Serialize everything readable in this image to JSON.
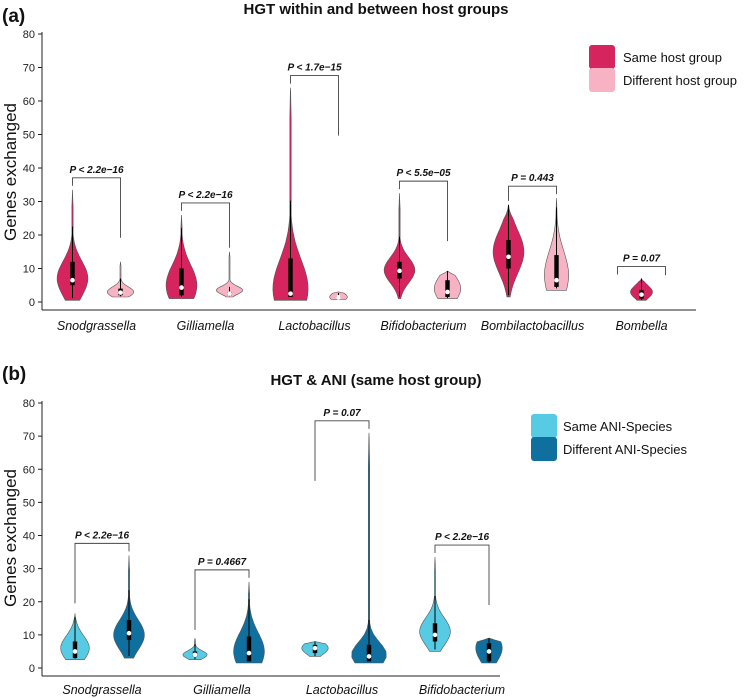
{
  "chart_data": [
    {
      "type": "violin",
      "panel_label": "(a)",
      "title": "HGT within and between host groups",
      "ylabel": "Genes exchanged",
      "xlabel": "",
      "ylim": [
        0,
        80
      ],
      "yticks": [
        0,
        10,
        20,
        30,
        40,
        50,
        60,
        70,
        80
      ],
      "legend_position": "top-right",
      "series_names": [
        "Same host group",
        "Different host group"
      ],
      "colors": [
        "#d6245e",
        "#f7b3c3"
      ],
      "categories": [
        {
          "name": "Snodgrassella",
          "pvalue": "P < 2.2e−16",
          "groups": [
            {
              "series": "Same host group",
              "min": 0.5,
              "max": 33.5,
              "q1": 5,
              "median": 6.5,
              "q3": 12,
              "mode": 7,
              "width": 0.7
            },
            {
              "series": "Different host group",
              "min": 1.5,
              "max": 12,
              "q1": 2,
              "median": 2.8,
              "q3": 4,
              "mode": 3,
              "width": 0.6
            }
          ]
        },
        {
          "name": "Gilliamella",
          "pvalue": "P < 2.2e−16",
          "groups": [
            {
              "series": "Same host group",
              "min": 1,
              "max": 26,
              "q1": 2,
              "median": 4.3,
              "q3": 10,
              "mode": 5,
              "width": 0.7
            },
            {
              "series": "Different host group",
              "min": 1.5,
              "max": 15,
              "q1": 2,
              "median": 2.5,
              "q3": 3,
              "mode": 3.5,
              "width": 0.6
            }
          ]
        },
        {
          "name": "Lactobacillus",
          "pvalue": "P < 1.7e−15",
          "groups": [
            {
              "series": "Same host group",
              "min": 0.5,
              "max": 64,
              "q1": 1.5,
              "median": 2.5,
              "q3": 13,
              "mode": 4,
              "width": 0.8
            },
            {
              "series": "Different host group",
              "min": 0.8,
              "max": 3,
              "q1": 1.2,
              "median": 1.4,
              "q3": 1.8,
              "mode": 1.5,
              "width": 0.4
            }
          ]
        },
        {
          "name": "Bifidobacterium",
          "pvalue": "P < 5.5e−05",
          "groups": [
            {
              "series": "Same host group",
              "min": 1,
              "max": 32.5,
              "q1": 7,
              "median": 9.3,
              "q3": 12,
              "mode": 9.5,
              "width": 0.7
            },
            {
              "series": "Different host group",
              "min": 1,
              "max": 9.2,
              "q1": 1.5,
              "median": 3,
              "q3": 6.5,
              "mode": 4,
              "width": 0.6
            }
          ]
        },
        {
          "name": "Bombilactobacillus",
          "pvalue": "P = 0.443",
          "groups": [
            {
              "series": "Same host group",
              "min": 1.5,
              "max": 29,
              "q1": 10,
              "median": 13.5,
              "q3": 18.5,
              "mode": 15,
              "width": 0.7
            },
            {
              "series": "Different host group",
              "min": 3.5,
              "max": 31,
              "q1": 4.5,
              "median": 6.5,
              "q3": 14,
              "mode": 8,
              "width": 0.55
            }
          ]
        },
        {
          "name": "Bombella",
          "pvalue": "P = 0.07",
          "groups": [
            {
              "series": "Same host group",
              "min": 0.5,
              "max": 7,
              "q1": 1,
              "median": 2.2,
              "q3": 3.5,
              "mode": 3,
              "width": 0.5
            }
          ]
        }
      ]
    },
    {
      "type": "violin",
      "panel_label": "(b)",
      "title": "HGT & ANI (same host group)",
      "ylabel": "Genes exchanged",
      "xlabel": "",
      "ylim": [
        0,
        80
      ],
      "yticks": [
        0,
        10,
        20,
        30,
        40,
        50,
        60,
        70,
        80
      ],
      "legend_position": "top-right",
      "series_names": [
        "Same ANI-Species",
        "Different ANI-Species"
      ],
      "colors": [
        "#57cbe4",
        "#0f6f9f"
      ],
      "categories": [
        {
          "name": "Snodgrassella",
          "pvalue": "P < 2.2e−16",
          "groups": [
            {
              "series": "Same ANI-Species",
              "min": 2.5,
              "max": 16.5,
              "q1": 3,
              "median": 5,
              "q3": 8,
              "mode": 6,
              "width": 0.65
            },
            {
              "series": "Different ANI-Species",
              "min": 3,
              "max": 34,
              "q1": 8.5,
              "median": 10.5,
              "q3": 14.5,
              "mode": 10,
              "width": 0.7
            }
          ]
        },
        {
          "name": "Gilliamella",
          "pvalue": "P = 0.4667",
          "groups": [
            {
              "series": "Same ANI-Species",
              "min": 2.5,
              "max": 9,
              "q1": 3.5,
              "median": 4,
              "q3": 5,
              "mode": 4,
              "width": 0.55
            },
            {
              "series": "Different ANI-Species",
              "min": 1.5,
              "max": 26,
              "q1": 2,
              "median": 4.5,
              "q3": 9.5,
              "mode": 5,
              "width": 0.7
            }
          ]
        },
        {
          "name": "Lactobacillus",
          "pvalue": "P = 0.07",
          "groups": [
            {
              "series": "Same ANI-Species",
              "min": 3.5,
              "max": 8,
              "q1": 4.5,
              "median": 6,
              "q3": 7,
              "mode": 6,
              "width": 0.6
            },
            {
              "series": "Different ANI-Species",
              "min": 1.5,
              "max": 71,
              "q1": 2,
              "median": 3.5,
              "q3": 7,
              "mode": 4,
              "width": 0.8
            }
          ]
        },
        {
          "name": "Bifidobacterium",
          "pvalue": "P < 2.2e−16",
          "groups": [
            {
              "series": "Same ANI-Species",
              "min": 5,
              "max": 33.5,
              "q1": 8,
              "median": 10,
              "q3": 13.5,
              "mode": 11,
              "width": 0.7
            },
            {
              "series": "Different ANI-Species",
              "min": 1.5,
              "max": 9,
              "q1": 2,
              "median": 5,
              "q3": 7.5,
              "mode": 6,
              "width": 0.6
            }
          ]
        }
      ]
    }
  ]
}
